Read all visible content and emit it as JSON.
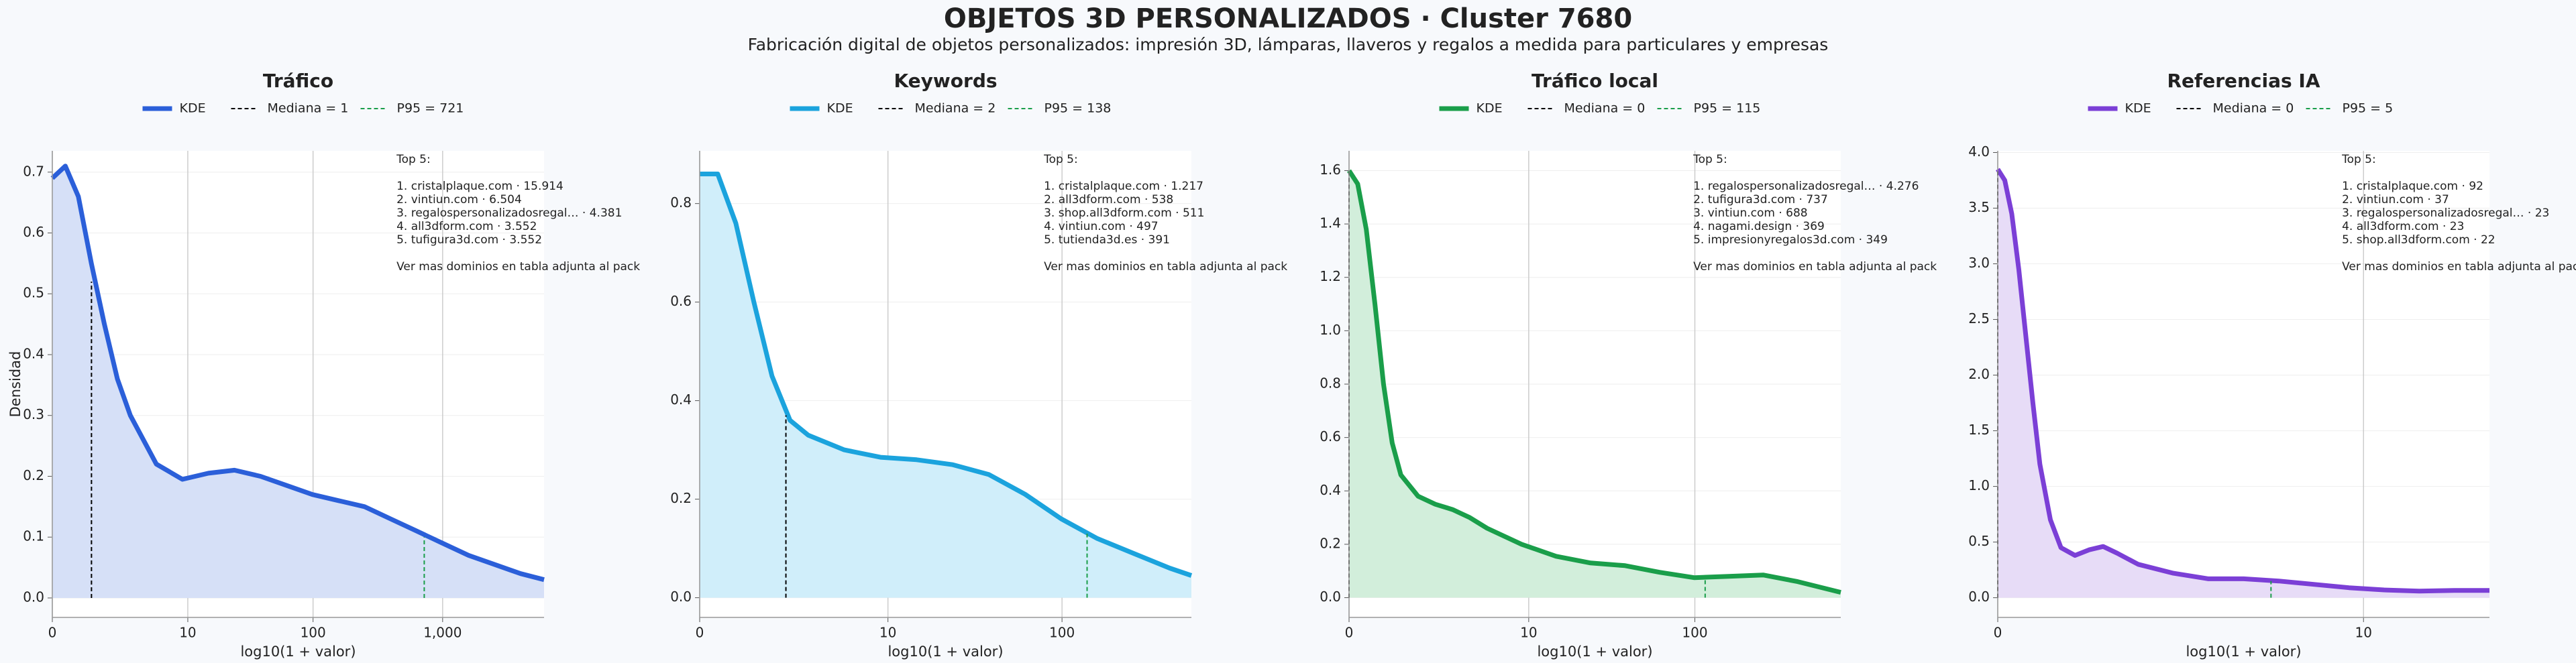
{
  "title": "OBJETOS 3D PERSONALIZADOS · Cluster 7680",
  "subtitle": "Fabricación digital de objetos personalizados: impresión 3D, lámparas, llaveros y regalos a medida para particulares y empresas",
  "chart_data": [
    {
      "type": "kde",
      "title": "Tráfico",
      "xlabel": "log10(1 + valor)",
      "ylabel": "Densidad",
      "xlim": [
        0,
        3.78
      ],
      "xticks": [
        0,
        {
          "value": 1.0414,
          "label": "10"
        },
        {
          "value": 2.0043,
          "label": "100"
        },
        {
          "value": 3.0004,
          "label": "1,000"
        }
      ],
      "ylim": [
        -0.032,
        0.735
      ],
      "yticks": [
        {
          "value": 0,
          "label": "0.0"
        },
        0.1,
        0.2,
        0.3,
        0.4,
        0.5,
        0.6,
        0.7
      ],
      "grid": true,
      "fill_color": "#d6e0f7",
      "x": [
        0,
        0.1,
        0.2,
        0.3,
        0.4,
        0.5,
        0.6,
        0.8,
        1.0,
        1.2,
        1.4,
        1.6,
        1.8,
        2.0,
        2.2,
        2.4,
        2.6,
        2.8,
        3.0,
        3.2,
        3.4,
        3.6,
        3.78
      ],
      "series": [
        {
          "name": "KDE",
          "color": "#2b5fd9",
          "values": [
            0.69,
            0.71,
            0.66,
            0.55,
            0.45,
            0.36,
            0.3,
            0.22,
            0.195,
            0.205,
            0.21,
            0.2,
            0.185,
            0.17,
            0.16,
            0.15,
            0.13,
            0.11,
            0.09,
            0.07,
            0.055,
            0.04,
            0.03
          ]
        }
      ],
      "median": {
        "label": "Mediana = 1",
        "x": 0.301,
        "y": 0.52,
        "color": "#000000"
      },
      "p95": {
        "label": "P95 = 721",
        "x": 2.859,
        "y": 0.1,
        "color": "#1a9e4a"
      },
      "annotation": {
        "heading": "Top 5:",
        "items": [
          "1. cristalplaque.com · 15.914",
          "2. vintiun.com · 6.504",
          "3. regalospersonalizadosregal… · 4.381",
          "4. all3dform.com · 3.552",
          "5. tufigura3d.com · 3.552"
        ],
        "footer": "Ver mas dominios en tabla adjunta al pack"
      }
    },
    {
      "type": "kde",
      "title": "Keywords",
      "xlabel": "log10(1 + valor)",
      "xlim": [
        0,
        2.72
      ],
      "xticks": [
        0,
        {
          "value": 1.0414,
          "label": "10"
        },
        {
          "value": 2.0043,
          "label": "100"
        }
      ],
      "ylim": [
        -0.04,
        0.907
      ],
      "yticks": [
        {
          "value": 0,
          "label": "0.0"
        },
        0.2,
        0.4,
        0.6,
        0.8
      ],
      "grid": true,
      "fill_color": "#d0eefa",
      "x": [
        0,
        0.1,
        0.2,
        0.3,
        0.4,
        0.5,
        0.6,
        0.8,
        1.0,
        1.2,
        1.4,
        1.6,
        1.8,
        2.0,
        2.2,
        2.4,
        2.6,
        2.72
      ],
      "series": [
        {
          "name": "KDE",
          "color": "#1ba3dd",
          "values": [
            0.86,
            0.86,
            0.76,
            0.6,
            0.45,
            0.36,
            0.33,
            0.3,
            0.285,
            0.28,
            0.27,
            0.25,
            0.21,
            0.16,
            0.12,
            0.09,
            0.06,
            0.045
          ]
        }
      ],
      "median": {
        "label": "Mediana = 2",
        "x": 0.477,
        "y": 0.37,
        "color": "#000000"
      },
      "p95": {
        "label": "P95 = 138",
        "x": 2.143,
        "y": 0.13,
        "color": "#1a9e4a"
      },
      "annotation": {
        "heading": "Top 5:",
        "items": [
          "1. cristalplaque.com · 1.217",
          "2. all3dform.com · 538",
          "3. shop.all3dform.com · 511",
          "4. vintiun.com · 497",
          "5. tutienda3d.es · 391"
        ],
        "footer": "Ver mas dominios en tabla adjunta al pack"
      }
    },
    {
      "type": "kde",
      "title": "Tráfico local",
      "xlabel": "log10(1 + valor)",
      "xlim": [
        0,
        2.85
      ],
      "xticks": [
        0,
        {
          "value": 1.0414,
          "label": "10"
        },
        {
          "value": 2.0043,
          "label": "100"
        }
      ],
      "ylim": [
        -0.074,
        1.674
      ],
      "yticks": [
        {
          "value": 0,
          "label": "0.0"
        },
        0.2,
        0.4,
        0.6,
        0.8,
        {
          "value": 1,
          "label": "1.0"
        },
        1.2,
        1.4,
        1.6
      ],
      "grid": true,
      "fill_color": "#d2eedb",
      "x": [
        0,
        0.05,
        0.1,
        0.15,
        0.2,
        0.25,
        0.3,
        0.4,
        0.5,
        0.6,
        0.7,
        0.8,
        1.0,
        1.2,
        1.4,
        1.6,
        1.8,
        2.0,
        2.2,
        2.4,
        2.6,
        2.85
      ],
      "series": [
        {
          "name": "KDE",
          "color": "#1a9e4a",
          "values": [
            1.6,
            1.55,
            1.38,
            1.1,
            0.8,
            0.58,
            0.46,
            0.38,
            0.35,
            0.33,
            0.3,
            0.26,
            0.2,
            0.155,
            0.13,
            0.12,
            0.095,
            0.075,
            0.08,
            0.085,
            0.06,
            0.02
          ]
        }
      ],
      "median": {
        "label": "Mediana = 0",
        "x": 0,
        "y": 1.6,
        "color": "#000000"
      },
      "p95": {
        "label": "P95 = 115",
        "x": 2.064,
        "y": 0.075,
        "color": "#1a9e4a"
      },
      "annotation": {
        "heading": "Top 5:",
        "items": [
          "1. regalospersonalizadosregal… · 4.276",
          "2. tufigura3d.com · 737",
          "3. vintiun.com · 688",
          "4. nagami.design · 369",
          "5. impresionyregalos3d.com · 349"
        ],
        "footer": "Ver mas dominios en tabla adjunta al pack"
      }
    },
    {
      "type": "kde",
      "title": "Referencias IA",
      "xlabel": "log10(1 + valor)",
      "xlim": [
        0,
        1.4
      ],
      "xticks": [
        0,
        {
          "value": 1.0414,
          "label": "10"
        }
      ],
      "ylim": [
        -0.177,
        4.015
      ],
      "yticks": [
        {
          "value": 0,
          "label": "0.0"
        },
        0.5,
        {
          "value": 1,
          "label": "1.0"
        },
        1.5,
        {
          "value": 2,
          "label": "2.0"
        },
        2.5,
        {
          "value": 3,
          "label": "3.0"
        },
        3.5,
        {
          "value": 4,
          "label": "4.0"
        }
      ],
      "grid": true,
      "fill_color": "#e7dcf7",
      "x": [
        0,
        0.02,
        0.04,
        0.06,
        0.08,
        0.1,
        0.12,
        0.15,
        0.18,
        0.22,
        0.26,
        0.3,
        0.34,
        0.4,
        0.5,
        0.6,
        0.7,
        0.8,
        0.9,
        1.0,
        1.1,
        1.2,
        1.3,
        1.4
      ],
      "series": [
        {
          "name": "KDE",
          "color": "#7b3fd6",
          "values": [
            3.85,
            3.75,
            3.45,
            2.95,
            2.35,
            1.75,
            1.2,
            0.7,
            0.45,
            0.38,
            0.43,
            0.46,
            0.4,
            0.3,
            0.22,
            0.17,
            0.17,
            0.15,
            0.12,
            0.09,
            0.07,
            0.06,
            0.065,
            0.065
          ]
        }
      ],
      "median": {
        "label": "Mediana = 0",
        "x": 0,
        "y": 3.85,
        "color": "#000000"
      },
      "p95": {
        "label": "P95 = 5",
        "x": 0.778,
        "y": 0.15,
        "color": "#1a9e4a"
      },
      "annotation": {
        "heading": "Top 5:",
        "items": [
          "1. cristalplaque.com · 92",
          "2. vintiun.com · 37",
          "3. regalospersonalizadosregal… · 23",
          "4. all3dform.com · 23",
          "5. shop.all3dform.com · 22"
        ],
        "footer": "Ver mas dominios en tabla adjunta al pack"
      }
    }
  ]
}
